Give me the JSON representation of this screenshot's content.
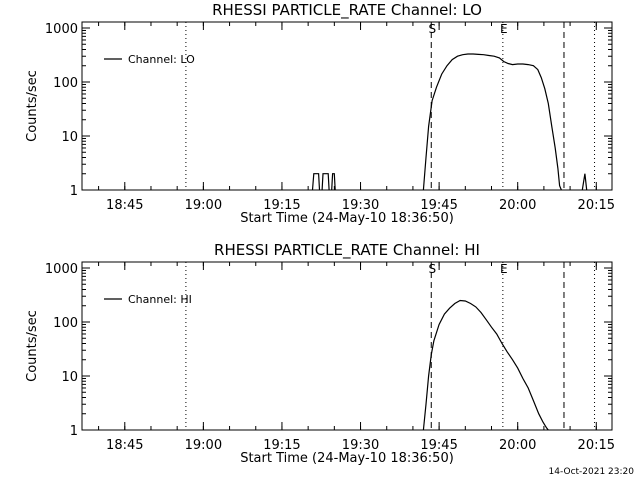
{
  "footer_timestamp": "14-Oct-2021 23:20",
  "chart_data": [
    {
      "type": "line",
      "title": "RHESSI PARTICLE_RATE Channel: LO",
      "xlabel": "Start Time (24-May-10 18:36:50)",
      "ylabel": "Counts/sec",
      "x_ticks": [
        "18:45",
        "19:00",
        "19:15",
        "19:30",
        "19:45",
        "20:00",
        "20:15"
      ],
      "y_ticks": [
        "1",
        "10",
        "100",
        "1000"
      ],
      "y_scale": "log",
      "xlim": [
        "18:36:50",
        "20:18:00"
      ],
      "ylim": [
        1,
        1000
      ],
      "legend": {
        "entries": [
          "Channel: LO"
        ],
        "position": "top-left"
      },
      "markers": [
        {
          "label": "S",
          "time": "19:43:30",
          "style": "dashed"
        },
        {
          "label": "E",
          "time": "19:57:10",
          "style": "dotted"
        }
      ],
      "vertical_lines": [
        {
          "time": "18:56:40",
          "style": "dotted"
        },
        {
          "time": "20:08:50",
          "style": "dashed"
        },
        {
          "time": "20:14:40",
          "style": "dotted"
        }
      ],
      "series": [
        {
          "name": "Channel: LO",
          "segments": [
            {
              "x": [
                "19:20:50",
                "19:21:05",
                "19:21:30",
                "19:22:00",
                "19:22:10"
              ],
              "y": [
                1,
                2,
                2,
                2,
                1
              ]
            },
            {
              "x": [
                "19:22:40",
                "19:22:50",
                "19:23:20",
                "19:23:50",
                "19:24:00"
              ],
              "y": [
                1,
                2,
                2,
                2,
                1
              ]
            },
            {
              "x": [
                "19:24:30",
                "19:24:40",
                "19:25:00",
                "19:25:10"
              ],
              "y": [
                1,
                2,
                2,
                1
              ]
            },
            {
              "x": [
                "19:42:00",
                "19:42:30",
                "19:43:00",
                "19:43:40",
                "19:44:30",
                "19:45:30",
                "19:46:30",
                "19:47:30",
                "19:48:30",
                "19:49:30",
                "19:50:30",
                "19:51:30",
                "19:52:30",
                "19:53:30",
                "19:54:30",
                "19:55:30",
                "19:56:30",
                "19:57:20",
                "19:58:10",
                "19:59:00",
                "20:00:00",
                "20:01:00",
                "20:02:00",
                "20:03:00",
                "20:03:50",
                "20:04:30",
                "20:05:10",
                "20:05:50",
                "20:06:30",
                "20:07:10",
                "20:07:40",
                "20:08:00",
                "20:08:20"
              ],
              "y": [
                1,
                4,
                15,
                45,
                80,
                140,
                200,
                260,
                300,
                320,
                330,
                330,
                325,
                320,
                310,
                300,
                280,
                240,
                220,
                210,
                215,
                215,
                210,
                200,
                170,
                120,
                75,
                40,
                15,
                6,
                2.5,
                1.2,
                1
              ]
            },
            {
              "x": [
                "20:12:20",
                "20:12:50",
                "20:13:10"
              ],
              "y": [
                1,
                2,
                1
              ]
            }
          ]
        }
      ]
    },
    {
      "type": "line",
      "title": "RHESSI PARTICLE_RATE Channel: HI",
      "xlabel": "Start Time (24-May-10 18:36:50)",
      "ylabel": "Counts/sec",
      "x_ticks": [
        "18:45",
        "19:00",
        "19:15",
        "19:30",
        "19:45",
        "20:00",
        "20:15"
      ],
      "y_ticks": [
        "1",
        "10",
        "100",
        "1000"
      ],
      "y_scale": "log",
      "xlim": [
        "18:36:50",
        "20:18:00"
      ],
      "ylim": [
        1,
        1000
      ],
      "legend": {
        "entries": [
          "Channel: HI"
        ],
        "position": "top-left"
      },
      "markers": [
        {
          "label": "S",
          "time": "19:43:30",
          "style": "dashed"
        },
        {
          "label": "E",
          "time": "19:57:10",
          "style": "dotted"
        }
      ],
      "vertical_lines": [
        {
          "time": "18:56:40",
          "style": "dotted"
        },
        {
          "time": "20:08:50",
          "style": "dashed"
        },
        {
          "time": "20:14:40",
          "style": "dotted"
        }
      ],
      "series": [
        {
          "name": "Channel: HI",
          "segments": [
            {
              "x": [
                "19:42:00",
                "19:42:30",
                "19:43:00",
                "19:43:30",
                "19:44:00",
                "19:45:00",
                "19:46:00",
                "19:47:00",
                "19:48:00",
                "19:49:00",
                "19:50:00",
                "19:51:00",
                "19:52:00",
                "19:53:00",
                "19:54:00",
                "19:55:00",
                "19:56:00",
                "19:57:00",
                "19:58:00",
                "19:59:00",
                "20:00:00",
                "20:01:00",
                "20:02:00",
                "20:03:00",
                "20:04:00",
                "20:04:50",
                "20:05:30",
                "20:05:50"
              ],
              "y": [
                1,
                3,
                10,
                25,
                45,
                90,
                140,
                180,
                220,
                250,
                245,
                220,
                190,
                150,
                110,
                80,
                60,
                40,
                28,
                20,
                14,
                9,
                6,
                3.5,
                2,
                1.4,
                1.1,
                1
              ]
            }
          ]
        }
      ]
    }
  ]
}
